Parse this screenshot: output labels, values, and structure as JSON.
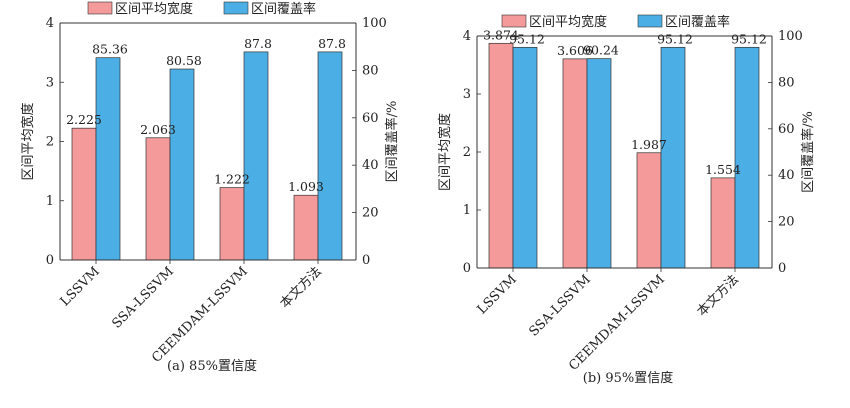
{
  "chart_data": [
    {
      "type": "bar",
      "caption": "(a) 85%置信度",
      "categories": [
        "LSSVM",
        "SSA-LSSVM",
        "CEEMDAM-LSSVM",
        "本文方法"
      ],
      "series": [
        {
          "name": "区间平均宽度",
          "axis": "left",
          "color": "#f59a9a",
          "values": [
            2.225,
            2.063,
            1.222,
            1.093
          ]
        },
        {
          "name": "区间覆盖率",
          "axis": "right",
          "color": "#4baee4",
          "values": [
            85.36,
            80.58,
            87.8,
            87.8
          ]
        }
      ],
      "data_labels": {
        "left": [
          "2.225",
          "2.063",
          "1.222",
          "1.093"
        ],
        "right": [
          "85.36",
          "80.58",
          "87.8",
          "87.8"
        ]
      },
      "ylabel_left": "区间平均宽度",
      "ylabel_right": "区间覆盖率/%",
      "ylim_left": [
        0,
        4
      ],
      "ylim_right": [
        0,
        100
      ],
      "yticks_left": [
        "0",
        "1",
        "2",
        "3",
        "4"
      ],
      "yticks_right": [
        "0",
        "20",
        "40",
        "60",
        "80",
        "100"
      ],
      "legend": "top",
      "grid": false
    },
    {
      "type": "bar",
      "caption": "(b) 95%置信度",
      "categories": [
        "LSSVM",
        "SSA-LSSVM",
        "CEEMDAM-LSSVM",
        "本文方法"
      ],
      "series": [
        {
          "name": "区间平均宽度",
          "axis": "left",
          "color": "#f59a9a",
          "values": [
            3.874,
            3.606,
            1.987,
            1.554
          ]
        },
        {
          "name": "区间覆盖率",
          "axis": "right",
          "color": "#4baee4",
          "values": [
            95.12,
            90.24,
            95.12,
            95.12
          ]
        }
      ],
      "data_labels": {
        "left": [
          "3.874",
          "3.606",
          "1.987",
          "1.554"
        ],
        "right": [
          "95.12",
          "90.24",
          "95.12",
          "95.12"
        ]
      },
      "ylabel_left": "区间平均宽度",
      "ylabel_right": "区间覆盖率/%",
      "ylim_left": [
        0,
        4
      ],
      "ylim_right": [
        0,
        100
      ],
      "yticks_left": [
        "0",
        "1",
        "2",
        "3",
        "4"
      ],
      "yticks_right": [
        "0",
        "20",
        "40",
        "60",
        "80",
        "100"
      ],
      "legend": "top",
      "grid": false
    }
  ]
}
